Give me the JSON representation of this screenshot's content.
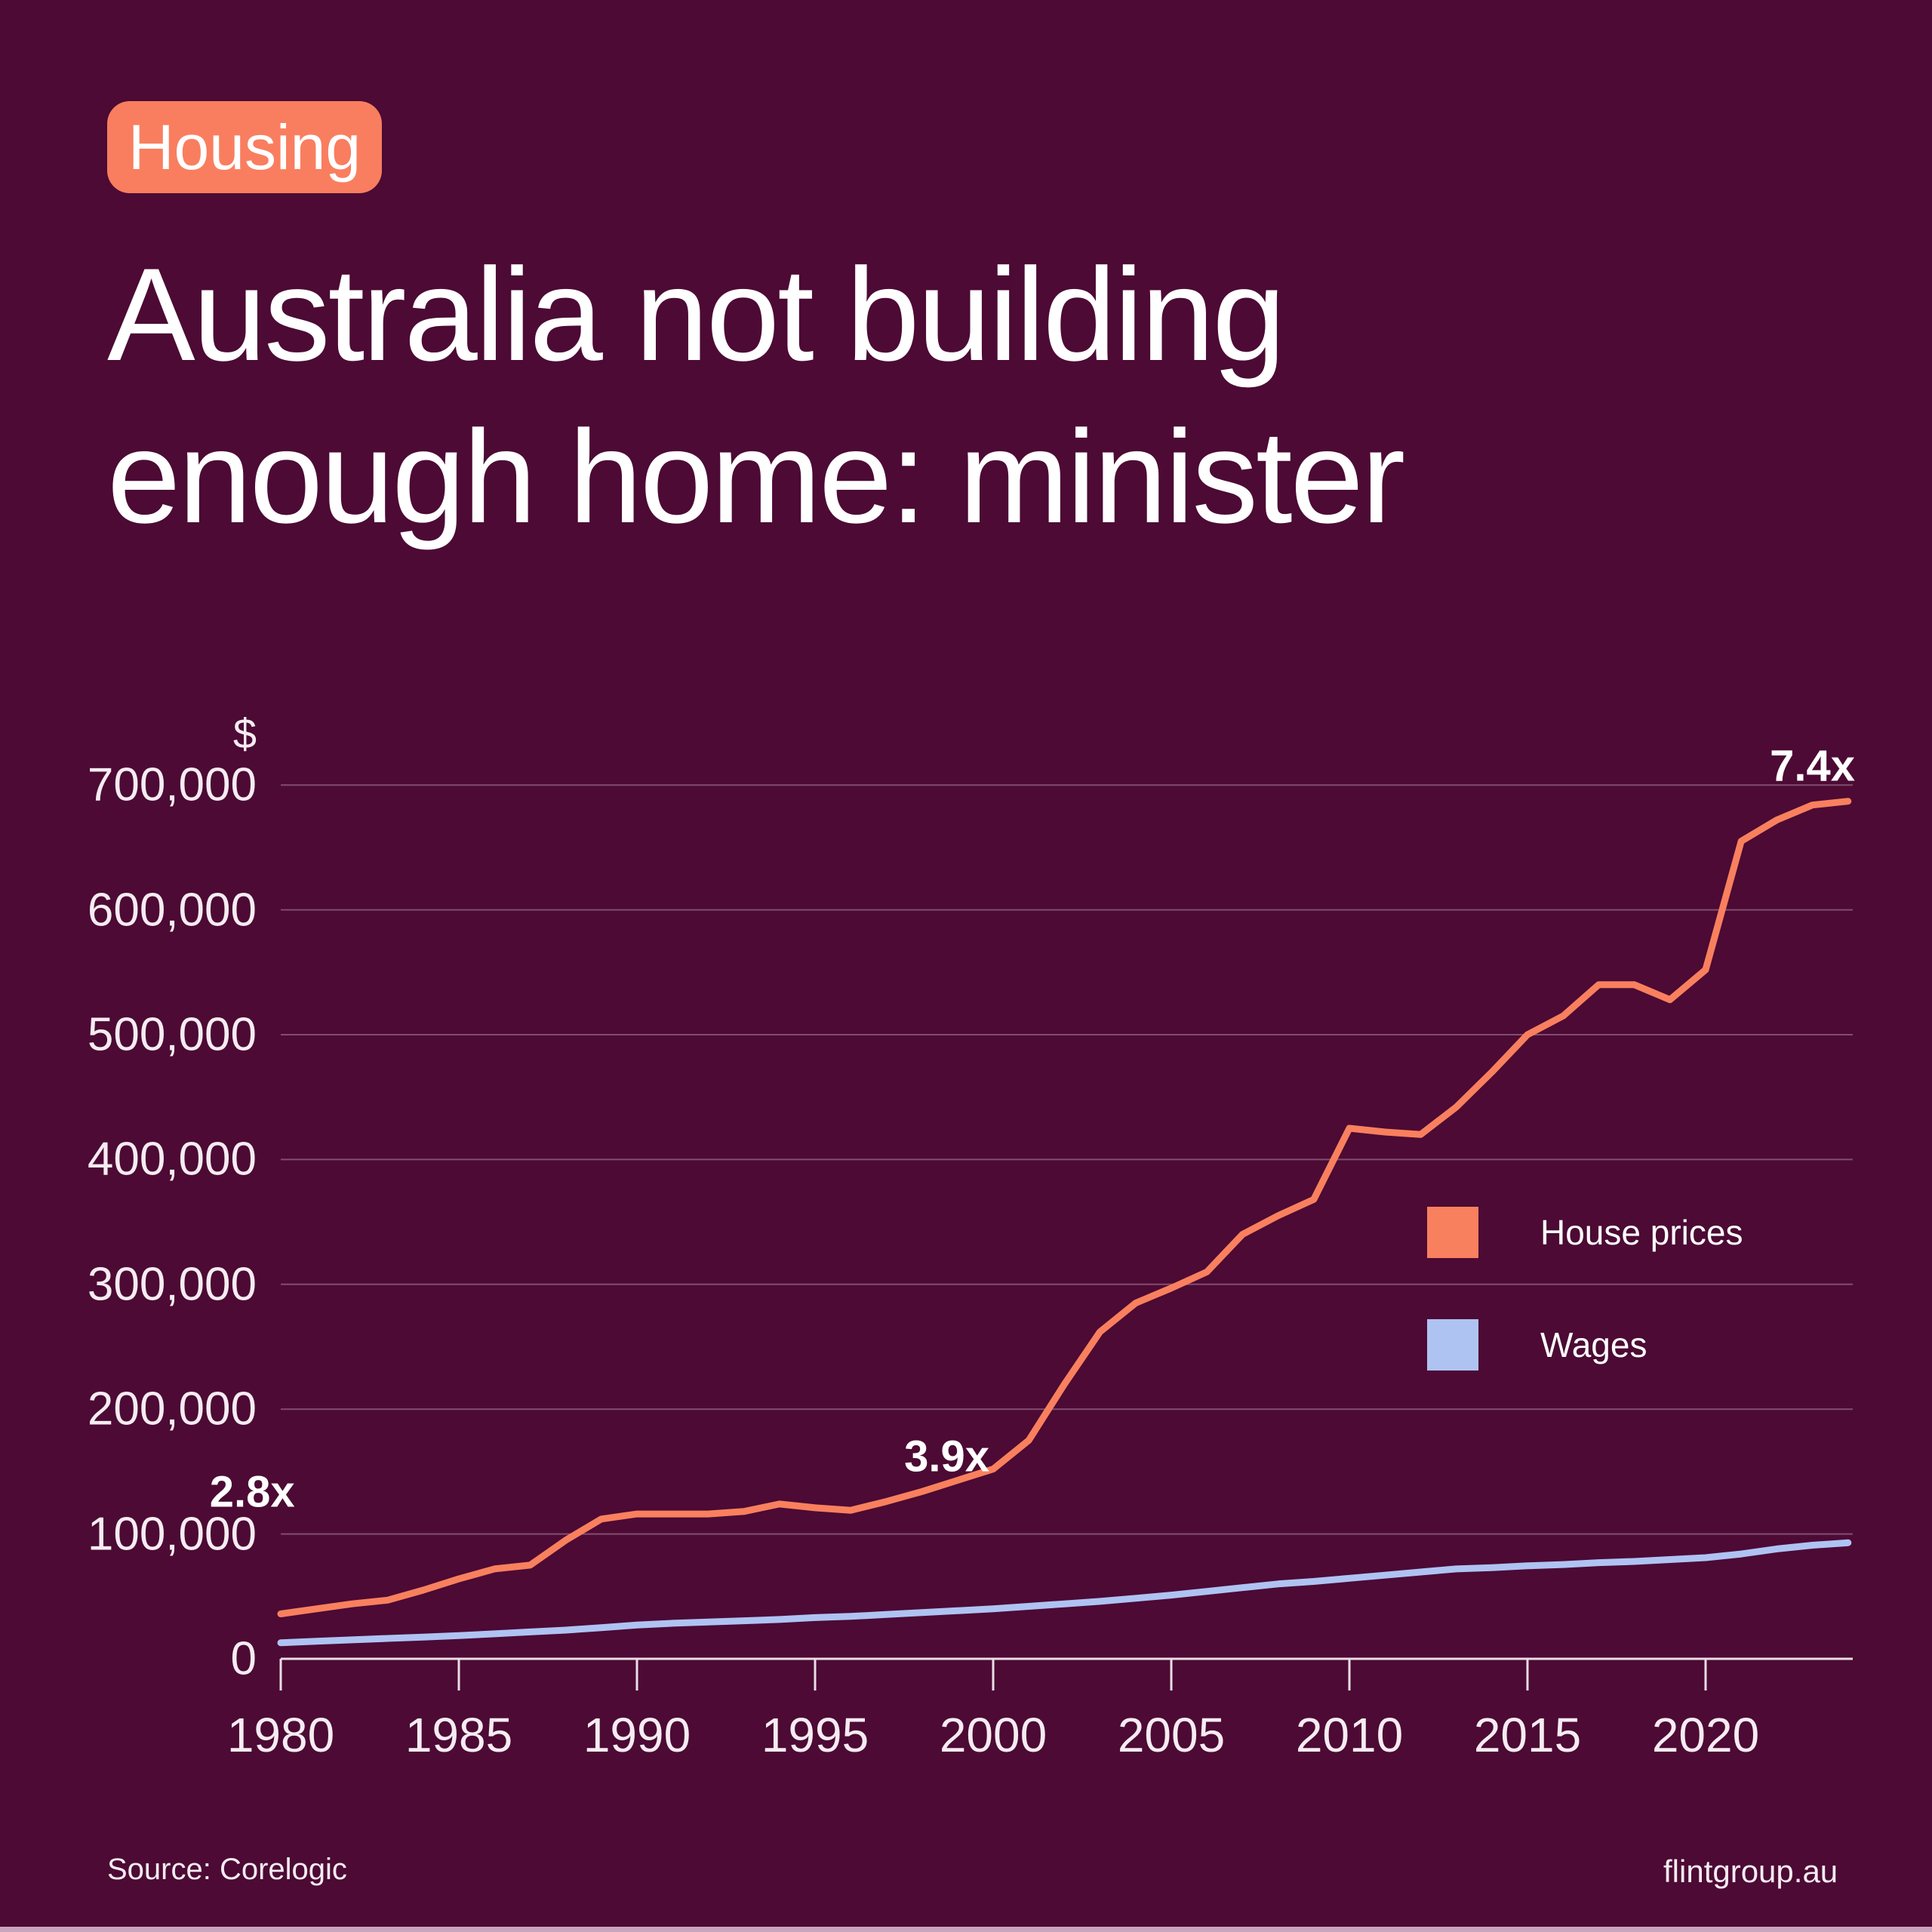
{
  "badge": {
    "label": "Housing",
    "bg_color": "#F97E5F"
  },
  "title": {
    "line1": "Australia not building",
    "line2": "enough home: minister"
  },
  "footer": {
    "source": "Source: Corelogic",
    "site": "flintgroup.au"
  },
  "colors": {
    "background": "#4C0A34",
    "house_prices": "#F9805E",
    "wages": "#AFC3F3",
    "gridline": "rgba(255,235,245,0.30)",
    "axis": "#EADDE6",
    "text": "#F6ECF2"
  },
  "chart_data": {
    "type": "line",
    "title": "House prices vs wages, Australia, 1980-2024 ($)",
    "unit_label": "$",
    "grid": true,
    "legend_position": "middle-right",
    "xlim": [
      1980,
      2024
    ],
    "ylim": [
      0,
      760000
    ],
    "x": [
      1980,
      1981,
      1982,
      1983,
      1984,
      1985,
      1986,
      1987,
      1988,
      1989,
      1990,
      1991,
      1992,
      1993,
      1994,
      1995,
      1996,
      1997,
      1998,
      1999,
      2000,
      2001,
      2002,
      2003,
      2004,
      2005,
      2006,
      2007,
      2008,
      2009,
      2010,
      2011,
      2012,
      2013,
      2014,
      2015,
      2016,
      2017,
      2018,
      2019,
      2020,
      2021,
      2022,
      2023,
      2024
    ],
    "series": [
      {
        "name": "House prices",
        "color": "#F9805E",
        "values": [
          36000,
          40000,
          44000,
          47000,
          55000,
          64000,
          72000,
          75000,
          95000,
          112000,
          116000,
          116000,
          116000,
          118000,
          124000,
          121000,
          119000,
          126000,
          134000,
          143000,
          152000,
          175000,
          220000,
          262000,
          285000,
          297000,
          310000,
          340000,
          355000,
          368000,
          425000,
          422000,
          420000,
          442000,
          470000,
          500000,
          515000,
          540000,
          540000,
          528000,
          552000,
          655000,
          672000,
          684000,
          687000
        ]
      },
      {
        "name": "Wages",
        "color": "#AFC3F3",
        "values": [
          12800,
          14000,
          15200,
          16300,
          17400,
          18600,
          20000,
          21500,
          23000,
          25000,
          27000,
          28500,
          29500,
          30500,
          31500,
          33000,
          34000,
          35500,
          37000,
          38500,
          40000,
          42000,
          44000,
          46000,
          48500,
          51000,
          54000,
          57000,
          60000,
          62000,
          64500,
          67000,
          69500,
          72000,
          73000,
          74500,
          75500,
          77000,
          78000,
          79500,
          81000,
          84000,
          88000,
          91000,
          93000
        ]
      }
    ],
    "y_ticks": [
      {
        "value": 0,
        "label": "0"
      },
      {
        "value": 100000,
        "label": "100,000"
      },
      {
        "value": 200000,
        "label": "200,000"
      },
      {
        "value": 300000,
        "label": "300,000"
      },
      {
        "value": 400000,
        "label": "400,000"
      },
      {
        "value": 500000,
        "label": "500,000"
      },
      {
        "value": 600000,
        "label": "600,000"
      },
      {
        "value": 700000,
        "label": "700,000"
      }
    ],
    "x_ticks": [
      {
        "value": 1980,
        "label": "1980"
      },
      {
        "value": 1985,
        "label": "1985"
      },
      {
        "value": 1990,
        "label": "1990"
      },
      {
        "value": 1995,
        "label": "1995"
      },
      {
        "value": 2000,
        "label": "2000"
      },
      {
        "value": 2005,
        "label": "2005"
      },
      {
        "value": 2010,
        "label": "2010"
      },
      {
        "value": 2015,
        "label": "2015"
      },
      {
        "value": 2020,
        "label": "2020"
      }
    ],
    "annotations": [
      {
        "text": "2.8x",
        "year": 1979.2,
        "value": 133600
      },
      {
        "text": "3.9x",
        "year": 1998.7,
        "value": 162000
      },
      {
        "text": "7.4x",
        "year": 2023.0,
        "value": 715000
      }
    ],
    "legend": [
      {
        "label": "House prices",
        "color": "#F9805E"
      },
      {
        "label": "Wages",
        "color": "#AFC3F3"
      }
    ]
  }
}
